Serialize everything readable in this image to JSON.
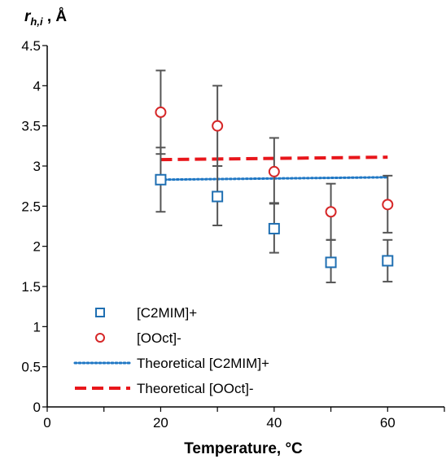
{
  "chart_data": {
    "type": "scatter",
    "title": "",
    "ylabel": {
      "main": "r",
      "sub": "h,i",
      "unit": ", Å"
    },
    "xlabel": "Temperature, °C",
    "xlim": [
      0,
      70
    ],
    "ylim": [
      0,
      4.5
    ],
    "xticks": [
      "0",
      "20",
      "40",
      "60"
    ],
    "xtick_values": [
      0,
      20,
      40,
      60
    ],
    "yticks": [
      "0",
      "0.5",
      "1",
      "1.5",
      "2",
      "2.5",
      "3",
      "3.5",
      "4",
      "4.5"
    ],
    "ytick_values": [
      0,
      0.5,
      1,
      1.5,
      2,
      2.5,
      3,
      3.5,
      4,
      4.5
    ],
    "grid": false,
    "legend_position": "bottom-left",
    "series": [
      {
        "name": "[C2MIM]+",
        "kind": "points",
        "marker": "square",
        "color": "#1f6fb2",
        "x": [
          20,
          30,
          40,
          50,
          60
        ],
        "y": [
          2.83,
          2.62,
          2.22,
          1.8,
          1.82
        ],
        "err_low": [
          0.4,
          0.36,
          0.3,
          0.25,
          0.26
        ],
        "err_high": [
          0.4,
          0.38,
          0.32,
          0.28,
          0.26
        ]
      },
      {
        "name": "[OOct]-",
        "kind": "points",
        "marker": "circle",
        "color": "#d62728",
        "x": [
          20,
          30,
          40,
          50,
          60
        ],
        "y": [
          3.67,
          3.5,
          2.93,
          2.43,
          2.52
        ],
        "err_low": [
          0.52,
          0.5,
          0.4,
          0.35,
          0.35
        ],
        "err_high": [
          0.52,
          0.5,
          0.42,
          0.35,
          0.36
        ]
      },
      {
        "name": "Theoretical [C2MIM]+",
        "kind": "line",
        "style": "dotted",
        "color": "#1f77c4",
        "x": [
          20,
          60
        ],
        "y": [
          2.83,
          2.86
        ]
      },
      {
        "name": "Theoretical [OOct]-",
        "kind": "line",
        "style": "dashed",
        "color": "#e8161b",
        "x": [
          20,
          60
        ],
        "y": [
          3.08,
          3.11
        ]
      }
    ]
  }
}
